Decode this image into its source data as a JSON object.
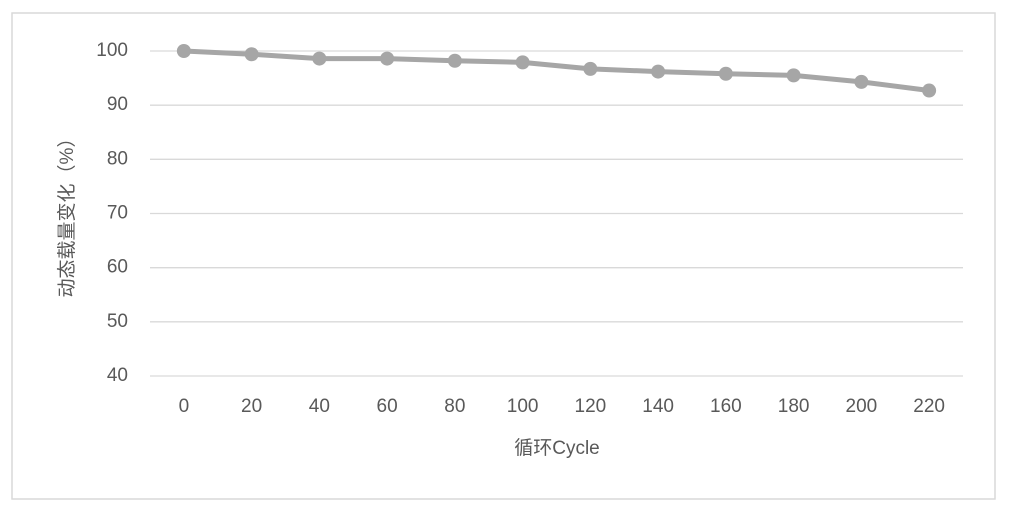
{
  "chart_data": {
    "type": "line",
    "x_label": "循环Cycle",
    "y_label": "动态载量变化（%）",
    "categories": [
      "0",
      "20",
      "40",
      "60",
      "80",
      "100",
      "120",
      "140",
      "160",
      "180",
      "200",
      "220"
    ],
    "series": [
      {
        "name": "动态载量变化",
        "color": "#a6a6a6",
        "values": [
          100,
          99.4,
          98.6,
          98.6,
          98.2,
          97.9,
          96.7,
          96.2,
          95.8,
          95.5,
          94.3,
          92.7
        ]
      }
    ],
    "ylim": [
      40,
      100
    ],
    "yticks": [
      40,
      50,
      60,
      70,
      80,
      90,
      100
    ],
    "grid": true
  }
}
